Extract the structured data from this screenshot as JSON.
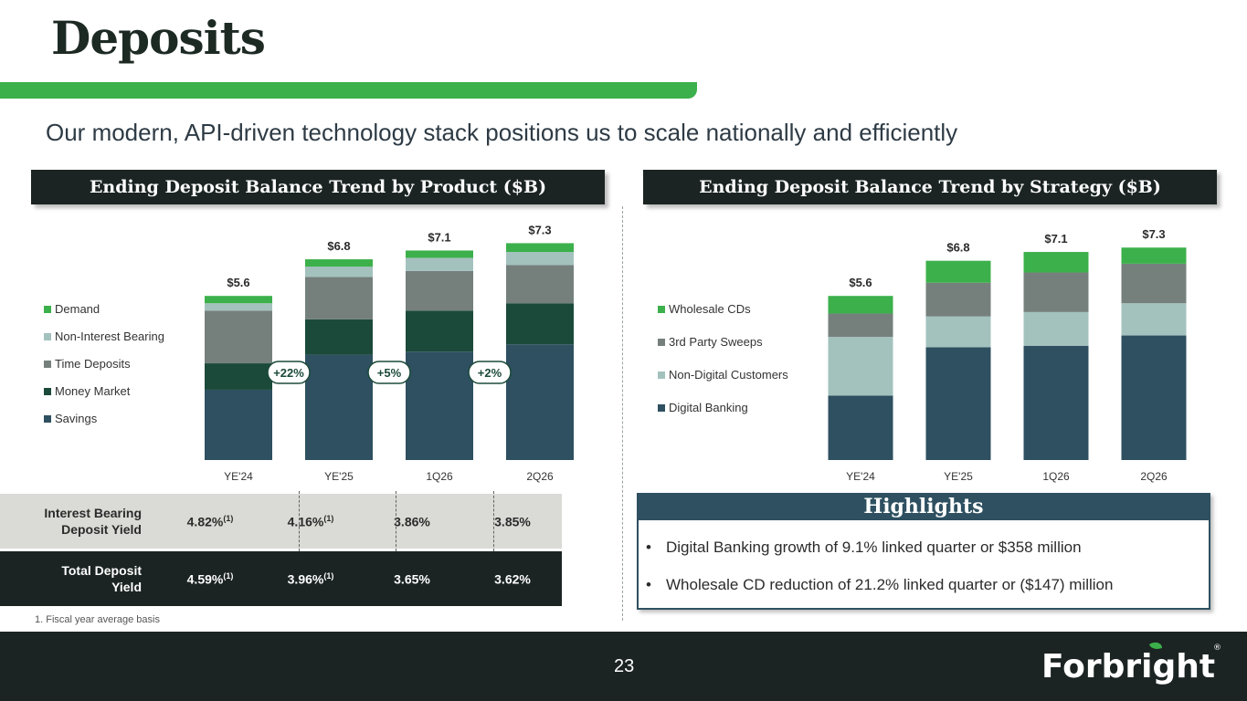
{
  "title": "Deposits",
  "subtitle": "Our modern, API-driven technology stack positions us to scale nationally and efficiently",
  "colors": {
    "green": "#3cb04b",
    "light_teal": "#a3c2be",
    "gray": "#75807d",
    "dark_green": "#1b4a3a",
    "navy": "#2e5060",
    "dark": "#1b2422"
  },
  "left_panel": {
    "header": "Ending Deposit Balance Trend by Product ($B)"
  },
  "right_panel": {
    "header": "Ending Deposit Balance Trend by Strategy ($B)"
  },
  "chart_data": [
    {
      "type": "bar",
      "stacked": true,
      "title": "Ending Deposit Balance Trend by Product ($B)",
      "categories": [
        "YE'24",
        "YE'25",
        "1Q26",
        "2Q26"
      ],
      "totals": [
        "$5.6",
        "$6.8",
        "$7.1",
        "$7.3"
      ],
      "total_values": [
        5.6,
        6.8,
        7.1,
        7.3
      ],
      "growth_labels": [
        "+22%",
        "+5%",
        "+2%"
      ],
      "legend_position": "left",
      "series": [
        {
          "name": "Savings",
          "color": "#2e5060",
          "values": [
            2.4,
            3.6,
            3.7,
            3.95
          ]
        },
        {
          "name": "Money Market",
          "color": "#1b4a3a",
          "values": [
            0.9,
            1.2,
            1.4,
            1.4
          ]
        },
        {
          "name": "Time Deposits",
          "color": "#75807d",
          "values": [
            1.8,
            1.45,
            1.35,
            1.3
          ]
        },
        {
          "name": "Non-Interest Bearing",
          "color": "#a3c2be",
          "values": [
            0.25,
            0.35,
            0.45,
            0.45
          ]
        },
        {
          "name": "Demand",
          "color": "#3cb04b",
          "values": [
            0.25,
            0.25,
            0.25,
            0.3
          ]
        }
      ],
      "ylim": [
        0,
        7.6
      ]
    },
    {
      "type": "bar",
      "stacked": true,
      "title": "Ending Deposit Balance Trend by Strategy ($B)",
      "categories": [
        "YE'24",
        "YE'25",
        "1Q26",
        "2Q26"
      ],
      "totals": [
        "$5.6",
        "$6.8",
        "$7.1",
        "$7.3"
      ],
      "total_values": [
        5.6,
        6.8,
        7.1,
        7.3
      ],
      "legend_position": "left",
      "series": [
        {
          "name": "Digital Banking",
          "color": "#2e5060",
          "values": [
            2.2,
            3.85,
            3.9,
            4.25
          ]
        },
        {
          "name": "Non-Digital Customers",
          "color": "#a3c2be",
          "values": [
            2.0,
            1.05,
            1.15,
            1.1
          ]
        },
        {
          "name": "3rd Party Sweeps",
          "color": "#75807d",
          "values": [
            0.8,
            1.15,
            1.35,
            1.35
          ]
        },
        {
          "name": "Wholesale CDs",
          "color": "#3cb04b",
          "values": [
            0.6,
            0.75,
            0.7,
            0.55
          ]
        }
      ],
      "ylim": [
        0,
        7.6
      ]
    }
  ],
  "yield_table": {
    "rows": [
      {
        "label_line1": "Interest Bearing",
        "label_line2": "Deposit Yield",
        "values": [
          "4.82%",
          "4.16%",
          "3.86%",
          "3.85%"
        ],
        "sups": [
          "(1)",
          "(1)",
          "",
          ""
        ]
      },
      {
        "label_line1": "Total Deposit",
        "label_line2": "Yield",
        "values": [
          "4.59%",
          "3.96%",
          "3.65%",
          "3.62%"
        ],
        "sups": [
          "(1)",
          "(1)",
          "",
          ""
        ]
      }
    ]
  },
  "footnote": "1.      Fiscal year average basis",
  "highlights": {
    "header": "Highlights",
    "items": [
      "Digital Banking growth of 9.1% linked quarter or $358 million",
      "Wholesale CD reduction of 21.2% linked quarter or ($147) million"
    ]
  },
  "page_number": "23",
  "logo_text": "Forbright",
  "logo_mark": "®"
}
